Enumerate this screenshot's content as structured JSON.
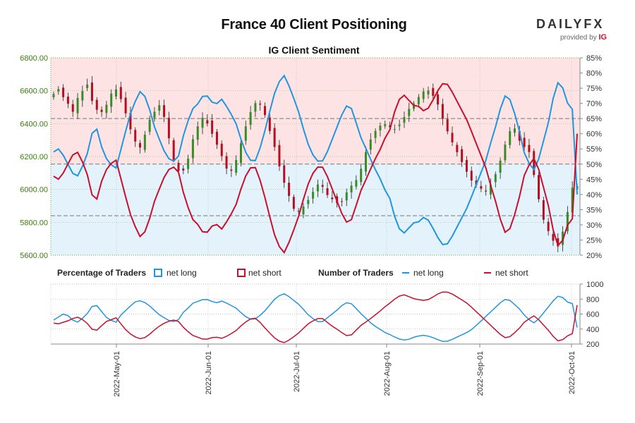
{
  "header": {
    "title": "France 40 Client Positioning",
    "subtitle": "IG Client Sentiment",
    "logo_text": "DAILYFX",
    "logo_sub": "provided by",
    "logo_ig": "IG"
  },
  "colors": {
    "long": "#2196e0",
    "short": "#c8102e",
    "price_axis": "#3a7d0a",
    "bull": "#3a8a2a",
    "bear": "#b01020",
    "upper_band": "#fde3e3",
    "lower_band": "#e4f2fb"
  },
  "legend": {
    "pct_title": "Percentage of Traders",
    "num_title": "Number of Traders",
    "net_long": "net long",
    "net_short": "net short"
  },
  "chart_data": [
    {
      "type": "candlestick+line",
      "title": "France 40 Client Positioning",
      "subtitle": "IG Client Sentiment",
      "price_ylim": [
        5600,
        6800
      ],
      "price_ticks": [
        "5600.00",
        "5800.00",
        "6000.00",
        "6200.00",
        "6400.00",
        "6600.00",
        "6800.00"
      ],
      "pct_ylim": [
        20,
        85
      ],
      "pct_ticks": [
        "20%",
        "25%",
        "30%",
        "35%",
        "40%",
        "45%",
        "50%",
        "55%",
        "60%",
        "65%",
        "70%",
        "75%",
        "80%",
        "85%"
      ],
      "reference_lines_pct": [
        65,
        50,
        33
      ],
      "x_ticks": [
        "2022-May-01",
        "2022-Jun-01",
        "2022-Jul-01",
        "2022-Aug-01",
        "2022-Sep-01",
        "2022-Oct-01"
      ],
      "price_anchors": [
        6580,
        6610,
        6560,
        6520,
        6470,
        6560,
        6600,
        6640,
        6530,
        6480,
        6470,
        6520,
        6590,
        6610,
        6540,
        6450,
        6350,
        6280,
        6250,
        6350,
        6440,
        6480,
        6520,
        6420,
        6280,
        6150,
        6100,
        6120,
        6210,
        6340,
        6400,
        6450,
        6380,
        6320,
        6250,
        6180,
        6100,
        6120,
        6210,
        6320,
        6420,
        6500,
        6540,
        6500,
        6420,
        6310,
        6220,
        6080,
        6010,
        5920,
        5850,
        5880,
        5910,
        5960,
        6010,
        6050,
        5980,
        5950,
        5930,
        5900,
        5960,
        6010,
        6040,
        6080,
        6190,
        6280,
        6340,
        6380,
        6400,
        6390,
        6360,
        6380,
        6420,
        6480,
        6510,
        6550,
        6590,
        6610,
        6580,
        6540,
        6450,
        6370,
        6300,
        6240,
        6180,
        6120,
        6060,
        6030,
        6010,
        5980,
        6020,
        6080,
        6160,
        6260,
        6350,
        6380,
        6300,
        6260,
        6240,
        6100,
        5950,
        5820,
        5750,
        5690,
        5650,
        5740,
        5860,
        6010,
        6020
      ],
      "pct_long_anchors": [
        54,
        55,
        53,
        50,
        47,
        46,
        49,
        53,
        60,
        62,
        56,
        52,
        50,
        48,
        54,
        60,
        66,
        70,
        74,
        73,
        69,
        63,
        59,
        55,
        52,
        51,
        51,
        58,
        63,
        68,
        69,
        72,
        73,
        71,
        69,
        72,
        70,
        67,
        65,
        60,
        55,
        52,
        50,
        53,
        59,
        64,
        72,
        75,
        80,
        78,
        73,
        70,
        64,
        59,
        54,
        52,
        50,
        52,
        56,
        60,
        64,
        68,
        70,
        67,
        61,
        57,
        54,
        50,
        47,
        44,
        40,
        38,
        30,
        28,
        27,
        30,
        31,
        31,
        33,
        31,
        28,
        25,
        23,
        24,
        27,
        30,
        33,
        36,
        40,
        44,
        48,
        52,
        58,
        63,
        69,
        73,
        71,
        66,
        60,
        53,
        50,
        48,
        52,
        58,
        64,
        72,
        77,
        75,
        70,
        68,
        40
      ],
      "pct_short_anchors": [
        46,
        45,
        47,
        50,
        53,
        54,
        51,
        47,
        40,
        38,
        44,
        48,
        50,
        52,
        46,
        40,
        34,
        30,
        26,
        27,
        31,
        37,
        41,
        45,
        48,
        49,
        49,
        42,
        37,
        32,
        31,
        28,
        27,
        29,
        31,
        28,
        30,
        33,
        35,
        40,
        45,
        48,
        50,
        47,
        41,
        36,
        28,
        25,
        20,
        22,
        27,
        30,
        36,
        41,
        46,
        48,
        50,
        48,
        44,
        40,
        36,
        32,
        30,
        33,
        39,
        43,
        46,
        50,
        53,
        56,
        60,
        62,
        70,
        72,
        73,
        70,
        69,
        69,
        67,
        69,
        72,
        75,
        77,
        76,
        73,
        70,
        67,
        64,
        60,
        56,
        52,
        48,
        42,
        37,
        31,
        27,
        29,
        34,
        40,
        47,
        50,
        52,
        48,
        42,
        36,
        28,
        23,
        25,
        30,
        32,
        60
      ],
      "num_long_anchors": [
        520,
        560,
        600,
        580,
        520,
        490,
        540,
        600,
        700,
        720,
        640,
        560,
        520,
        480,
        580,
        640,
        700,
        760,
        780,
        760,
        720,
        660,
        600,
        560,
        520,
        500,
        500,
        610,
        660,
        740,
        760,
        790,
        800,
        780,
        740,
        780,
        760,
        720,
        700,
        640,
        580,
        540,
        520,
        560,
        620,
        680,
        780,
        820,
        880,
        860,
        800,
        760,
        700,
        620,
        560,
        520,
        480,
        520,
        580,
        620,
        680,
        740,
        760,
        720,
        640,
        580,
        520,
        460,
        420,
        380,
        340,
        320,
        280,
        260,
        250,
        270,
        300,
        310,
        320,
        300,
        280,
        250,
        230,
        240,
        270,
        300,
        330,
        360,
        400,
        460,
        520,
        580,
        640,
        700,
        760,
        800,
        780,
        720,
        660,
        580,
        520,
        480,
        540,
        620,
        700,
        780,
        840,
        820,
        760,
        740,
        420
      ],
      "num_short_anchors": [
        480,
        470,
        490,
        510,
        540,
        560,
        530,
        480,
        400,
        380,
        440,
        500,
        520,
        560,
        480,
        400,
        340,
        300,
        270,
        280,
        320,
        380,
        430,
        470,
        500,
        520,
        520,
        440,
        380,
        320,
        300,
        270,
        260,
        280,
        300,
        270,
        290,
        330,
        360,
        420,
        480,
        520,
        560,
        520,
        440,
        380,
        300,
        260,
        210,
        230,
        280,
        320,
        380,
        440,
        500,
        520,
        560,
        520,
        460,
        420,
        380,
        330,
        300,
        340,
        420,
        470,
        510,
        560,
        610,
        660,
        720,
        760,
        820,
        850,
        860,
        820,
        800,
        790,
        780,
        800,
        840,
        880,
        900,
        890,
        860,
        820,
        780,
        740,
        680,
        620,
        560,
        500,
        440,
        380,
        320,
        280,
        300,
        360,
        420,
        500,
        540,
        580,
        520,
        450,
        380,
        300,
        240,
        260,
        310,
        340,
        720
      ],
      "num_ylim": [
        200,
        1000
      ],
      "num_ticks": [
        "200",
        "400",
        "600",
        "800",
        "1000"
      ]
    }
  ]
}
